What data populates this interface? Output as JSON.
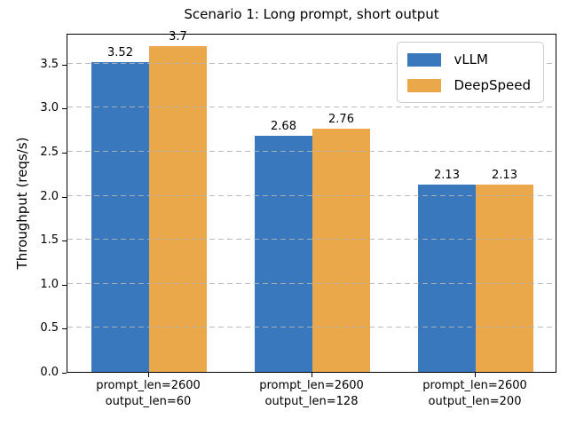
{
  "chart_data": {
    "type": "bar",
    "title": "Scenario 1: Long prompt, short output",
    "ylabel": "Throughput (reqs/s)",
    "xlabel": "",
    "categories": [
      [
        "prompt_len=2600",
        "output_len=60"
      ],
      [
        "prompt_len=2600",
        "output_len=128"
      ],
      [
        "prompt_len=2600",
        "output_len=200"
      ]
    ],
    "series": [
      {
        "name": "vLLM",
        "color": "#3a78bd",
        "values": [
          3.52,
          2.68,
          2.13
        ]
      },
      {
        "name": "DeepSpeed",
        "color": "#eba84a",
        "values": [
          3.7,
          2.76,
          2.13
        ]
      }
    ],
    "ylim": [
      0,
      3.85
    ],
    "yticks": [
      "0.0",
      "0.5",
      "1.0",
      "1.5",
      "2.0",
      "2.5",
      "3.0",
      "3.5"
    ],
    "grid": {
      "axis": "y",
      "style": "dashed",
      "color": "#b4b4b4"
    },
    "legend": {
      "position": "upper right",
      "entries": [
        "vLLM",
        "DeepSpeed"
      ]
    },
    "bar_value_labels_shown": true,
    "spine_color": "#000000",
    "text_color": "#000000"
  }
}
